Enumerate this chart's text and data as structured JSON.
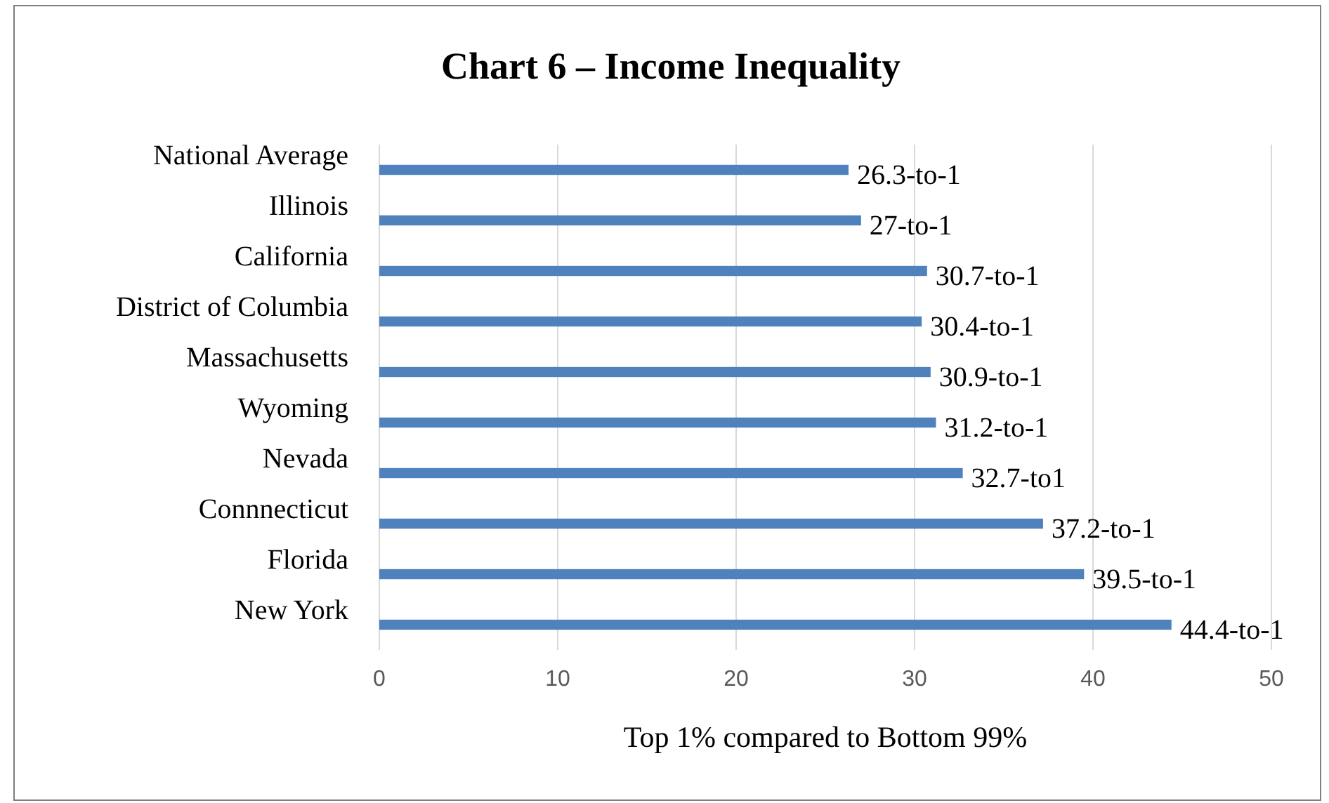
{
  "chart_data": {
    "type": "bar",
    "orientation": "horizontal",
    "title": "Chart 6 – Income Inequality",
    "xlabel": "Top 1% compared to Bottom 99%",
    "categories": [
      "National Average",
      "Illinois",
      "California",
      "District of Columbia",
      "Massachusetts",
      "Wyoming",
      "Nevada",
      "Connnecticut",
      "Florida",
      "New York"
    ],
    "values": [
      26.3,
      27,
      30.7,
      30.4,
      30.9,
      31.2,
      32.7,
      37.2,
      39.5,
      44.4
    ],
    "value_labels": [
      "26.3-to-1",
      "27-to-1",
      "30.7-to-1",
      "30.4-to-1",
      "30.9-to-1",
      "31.2-to-1",
      "32.7-to1",
      "37.2-to-1",
      "39.5-to-1",
      "44.4-to-1"
    ],
    "color": "#4f81bd",
    "xlim": [
      0,
      50
    ],
    "xticks": [
      0,
      10,
      20,
      30,
      40,
      50
    ],
    "grid": "x"
  }
}
